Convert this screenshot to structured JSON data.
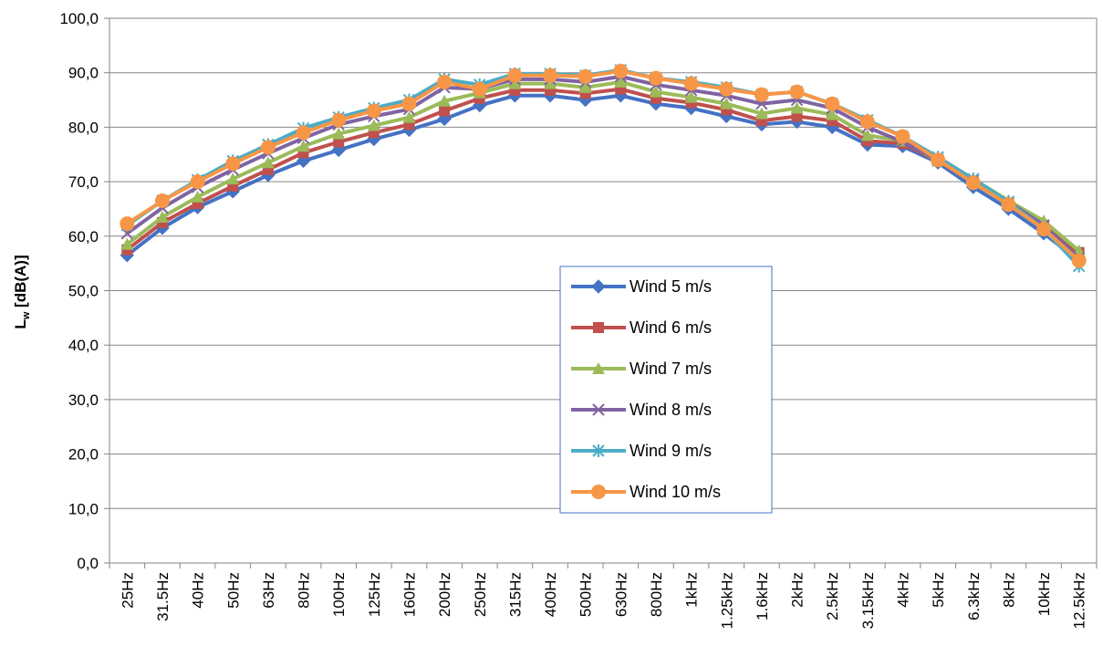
{
  "chart_data": {
    "type": "line",
    "title": "",
    "xlabel": "",
    "ylabel_main": "L",
    "ylabel_sub": "w",
    "ylabel_rest": " [dB(A)]",
    "ylim": [
      0,
      100
    ],
    "yticks": [
      "0,0",
      "10,0",
      "20,0",
      "30,0",
      "40,0",
      "50,0",
      "60,0",
      "70,0",
      "80,0",
      "90,0",
      "100,0"
    ],
    "grid": "horizontal",
    "legend_position": "center-right",
    "categories": [
      "25Hz",
      "31.5Hz",
      "40Hz",
      "50Hz",
      "63Hz",
      "80Hz",
      "100Hz",
      "125Hz",
      "160Hz",
      "200Hz",
      "250Hz",
      "315Hz",
      "400Hz",
      "500Hz",
      "630Hz",
      "800Hz",
      "1kHz",
      "1.25kHz",
      "1.6kHz",
      "2kHz",
      "2.5kHz",
      "3.15kHz",
      "4kHz",
      "5kHz",
      "6.3kHz",
      "8kHz",
      "10kHz",
      "12.5kHz"
    ],
    "series": [
      {
        "name": "Wind 5 m/s",
        "color": "#4472C4",
        "marker": "diamond",
        "values": [
          56.5,
          61.5,
          65.3,
          68.2,
          71.2,
          73.8,
          75.8,
          77.8,
          79.5,
          81.5,
          84.0,
          85.8,
          85.8,
          85.0,
          85.8,
          84.3,
          83.5,
          82.0,
          80.5,
          81.0,
          80.0,
          76.8,
          76.5,
          73.5,
          69.0,
          65.0,
          60.5,
          55.5
        ]
      },
      {
        "name": "Wind 6 m/s",
        "color": "#C0504D",
        "marker": "square",
        "values": [
          57.5,
          62.5,
          66.0,
          69.2,
          72.2,
          75.3,
          77.3,
          79.0,
          80.5,
          83.0,
          85.3,
          86.8,
          86.8,
          86.2,
          87.0,
          85.3,
          84.5,
          83.2,
          81.2,
          82.0,
          81.2,
          77.5,
          77.0,
          73.8,
          70.0,
          66.0,
          62.0,
          57.0
        ]
      },
      {
        "name": "Wind 7 m/s",
        "color": "#9BBB59",
        "marker": "triangle",
        "values": [
          58.5,
          63.5,
          67.2,
          70.5,
          73.5,
          76.5,
          78.8,
          80.3,
          81.8,
          84.8,
          86.3,
          88.0,
          88.0,
          87.3,
          88.3,
          86.5,
          85.5,
          84.3,
          82.5,
          83.5,
          82.3,
          78.5,
          77.5,
          73.8,
          70.5,
          66.5,
          62.8,
          57.3
        ]
      },
      {
        "name": "Wind 8 m/s",
        "color": "#8064A2",
        "marker": "x",
        "values": [
          60.5,
          65.2,
          69.0,
          72.2,
          75.2,
          78.0,
          80.5,
          82.0,
          83.3,
          87.3,
          87.0,
          88.8,
          88.8,
          88.3,
          89.3,
          87.8,
          86.8,
          85.8,
          84.3,
          85.0,
          83.5,
          80.0,
          77.3,
          74.0,
          70.3,
          66.3,
          62.0,
          56.0
        ]
      },
      {
        "name": "Wind 9 m/s",
        "color": "#4BACC6",
        "marker": "asterisk",
        "values": [
          62.0,
          66.5,
          70.3,
          73.8,
          76.8,
          79.8,
          81.8,
          83.5,
          85.0,
          88.8,
          87.8,
          89.8,
          89.8,
          89.5,
          90.5,
          89.0,
          88.3,
          87.3,
          86.0,
          86.5,
          84.3,
          81.3,
          78.3,
          74.5,
          70.5,
          66.3,
          61.3,
          54.5
        ]
      },
      {
        "name": "Wind 10 m/s",
        "color": "#F79646",
        "marker": "circle",
        "values": [
          62.3,
          66.5,
          70.0,
          73.3,
          76.3,
          79.0,
          81.3,
          83.0,
          84.3,
          88.3,
          87.0,
          89.5,
          89.5,
          89.3,
          90.3,
          89.0,
          88.0,
          87.0,
          86.0,
          86.5,
          84.3,
          81.0,
          78.3,
          74.0,
          69.8,
          65.8,
          61.3,
          55.5
        ]
      }
    ]
  }
}
